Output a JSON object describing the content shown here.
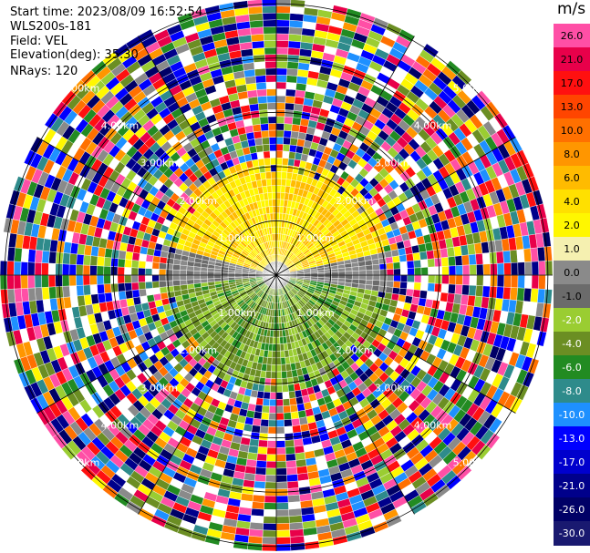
{
  "header": {
    "start_time": "Start time: 2023/08/09 16:52:54",
    "site": "WLS200s-181",
    "field": "Field: VEL",
    "elevation": "Elevation(deg): 35.30",
    "nrays": "NRays: 120"
  },
  "colorbar": {
    "unit": "m/s",
    "entries": [
      {
        "label": "26.0",
        "color": "#ff4fa6"
      },
      {
        "label": "21.0",
        "color": "#e8004a"
      },
      {
        "label": "17.0",
        "color": "#ff1010"
      },
      {
        "label": "13.0",
        "color": "#ff4500"
      },
      {
        "label": "10.0",
        "color": "#ff7000"
      },
      {
        "label": "8.0",
        "color": "#ff9600"
      },
      {
        "label": "6.0",
        "color": "#ffbb00"
      },
      {
        "label": "4.0",
        "color": "#ffe000"
      },
      {
        "label": "2.0",
        "color": "#fff700"
      },
      {
        "label": "1.0",
        "color": "#f5f0b0"
      },
      {
        "label": "0.0",
        "color": "#8a8a8a"
      },
      {
        "label": "-1.0",
        "color": "#6b6b6b"
      },
      {
        "label": "-2.0",
        "color": "#9acd32"
      },
      {
        "label": "-4.0",
        "color": "#6b8e23"
      },
      {
        "label": "-6.0",
        "color": "#228b22"
      },
      {
        "label": "-8.0",
        "color": "#2e8b8b"
      },
      {
        "label": "-10.0",
        "color": "#1e90ff"
      },
      {
        "label": "-13.0",
        "color": "#0000ff"
      },
      {
        "label": "-17.0",
        "color": "#0000cd"
      },
      {
        "label": "-21.0",
        "color": "#00008b"
      },
      {
        "label": "-26.0",
        "color": "#000066"
      },
      {
        "label": "-30.0",
        "color": "#191970"
      }
    ]
  },
  "rings": [
    {
      "range_km": 1.0,
      "label": "1.00km"
    },
    {
      "range_km": 2.0,
      "label": "2.00km"
    },
    {
      "range_km": 3.0,
      "label": "3.00km"
    },
    {
      "range_km": 4.0,
      "label": "4.00km"
    },
    {
      "range_km": 5.0,
      "label": "5.00km"
    }
  ],
  "ppi": {
    "max_range_km": 5.0,
    "n_rays": 120,
    "n_gates": 40,
    "grid_color": "#000000"
  }
}
